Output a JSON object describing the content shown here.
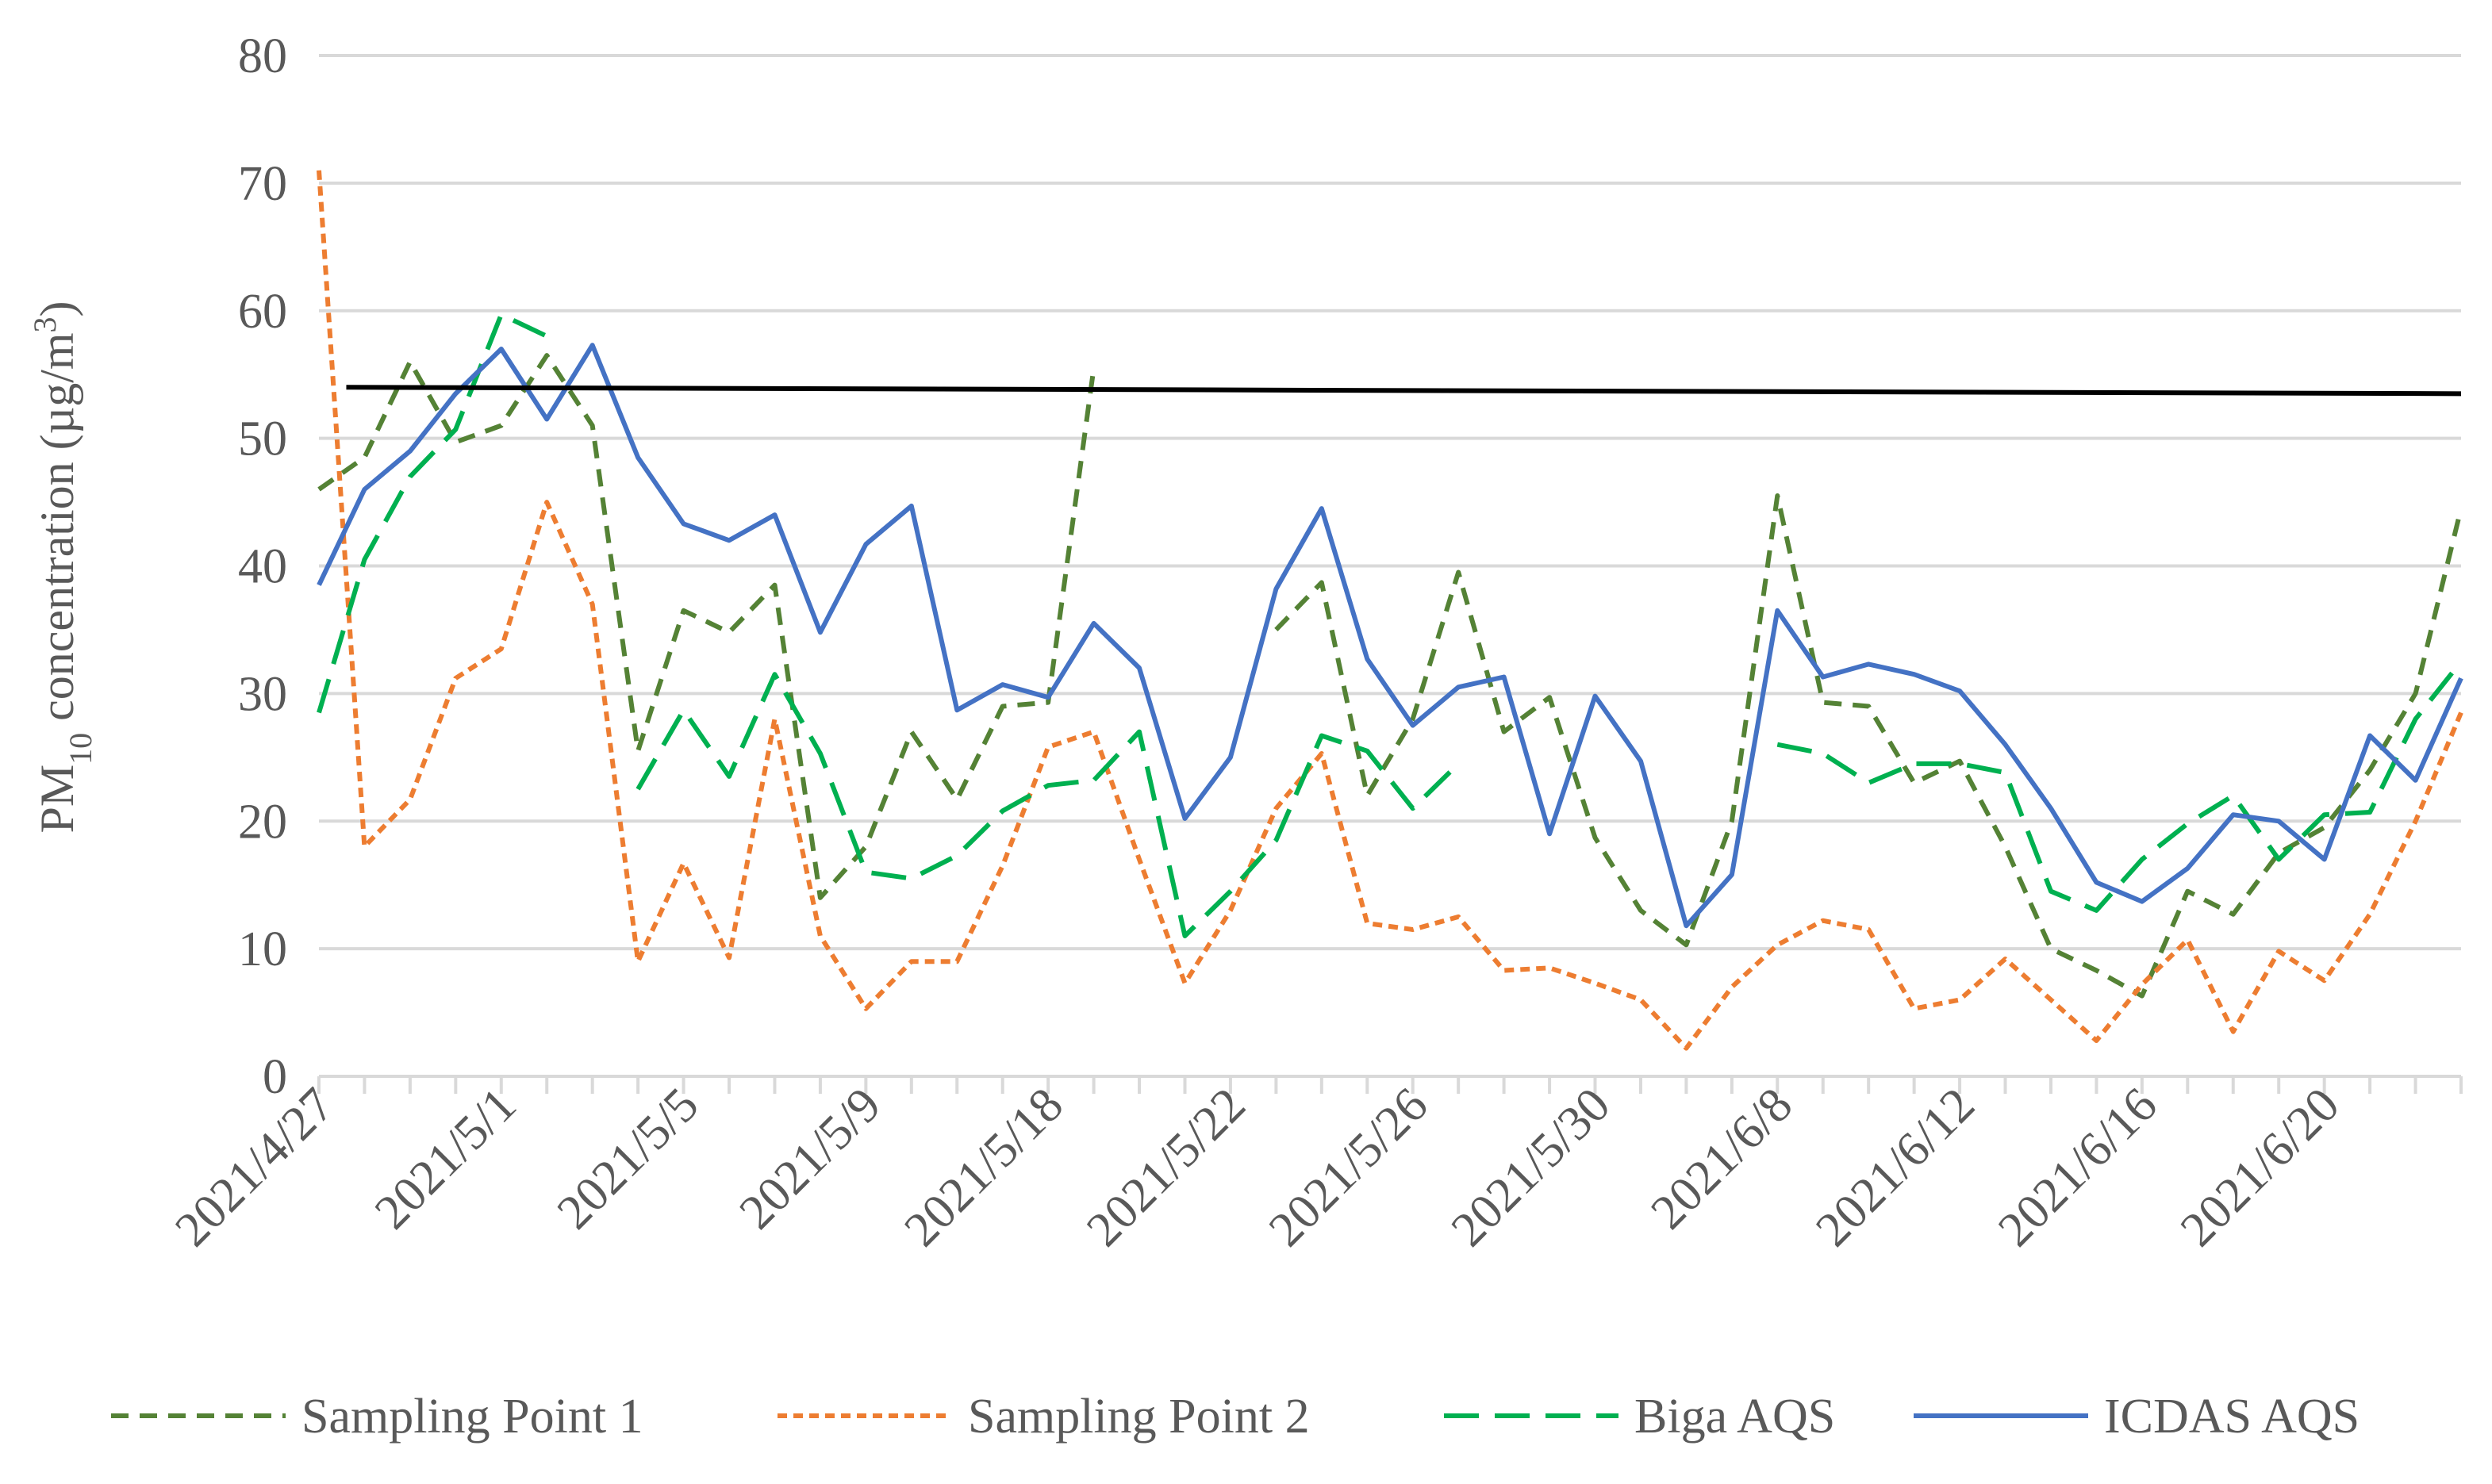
{
  "chart_data": {
    "type": "line",
    "y_label": [
      "PM",
      "10",
      " concentration (µg/m",
      "3",
      ")"
    ],
    "categories": [
      "2021/4/27",
      null,
      null,
      null,
      "2021/5/1",
      null,
      null,
      null,
      "2021/5/5",
      null,
      null,
      null,
      "2021/5/9",
      null,
      null,
      null,
      "2021/5/18",
      null,
      null,
      null,
      "2021/5/22",
      null,
      null,
      null,
      "2021/5/26",
      null,
      null,
      null,
      "2021/5/30",
      null,
      null,
      null,
      "2021/6/8",
      null,
      null,
      null,
      "2021/6/12",
      null,
      null,
      null,
      "2021/6/16",
      null,
      null,
      null,
      "2021/6/20",
      null,
      null,
      null
    ],
    "ylim": [
      0,
      80
    ],
    "yticks": [
      0,
      10,
      20,
      30,
      40,
      50,
      60,
      70,
      80
    ],
    "grid": true,
    "legend": "bottom",
    "series": [
      {
        "name": "Sampling Point 1",
        "color": "#548235",
        "dash": "short",
        "values": [
          46,
          48.5,
          56,
          49.7,
          51,
          56.5,
          51,
          25.5,
          36.5,
          34.8,
          38.5,
          14,
          18,
          27,
          21.7,
          29,
          29.3,
          55.5,
          null,
          null,
          null,
          35,
          38.7,
          22,
          28,
          39.5,
          27,
          29.7,
          18.7,
          13,
          10.3,
          20,
          45.5,
          29.3,
          29,
          23,
          24.7,
          18,
          10,
          8.3,
          6.3,
          14.5,
          12.7,
          17.5,
          19.5,
          24,
          30,
          44.5
        ]
      },
      {
        "name": "Sampling Point 2",
        "color": "#ed7d31",
        "dash": "dot",
        "values": [
          71,
          18,
          21.7,
          31.2,
          33.5,
          45,
          37,
          9,
          16.7,
          9.3,
          28,
          11,
          5.3,
          9,
          9,
          16.5,
          25.8,
          27,
          17,
          7.3,
          13,
          21,
          25.3,
          12,
          11.5,
          12.5,
          8.3,
          8.5,
          7.3,
          6,
          2.2,
          7,
          10.3,
          12.2,
          11.5,
          5.3,
          6,
          9.2,
          6,
          2.8,
          7.2,
          10.7,
          3.5,
          9.8,
          7.5,
          12.7,
          20,
          28.5
        ]
      },
      {
        "name": "Biga AQS",
        "color": "#00b050",
        "dash": "long",
        "values": [
          28.5,
          40.5,
          47,
          50.7,
          59.7,
          58,
          null,
          22.5,
          28.7,
          23.5,
          31.5,
          25.3,
          16,
          15.5,
          17.3,
          20.8,
          22.8,
          23.2,
          27,
          11,
          14.5,
          18.5,
          26.7,
          25.5,
          21,
          24.5,
          null,
          null,
          null,
          null,
          null,
          null,
          26,
          25.3,
          23,
          24.5,
          24.5,
          23.8,
          14.5,
          13,
          17,
          19.8,
          22,
          17,
          20.5,
          20.7,
          28,
          32.5
        ]
      },
      {
        "name": "ICDAS AQS",
        "color": "#4472c4",
        "dash": "solid",
        "values": [
          38.5,
          46,
          49,
          53.5,
          57,
          51.5,
          57.3,
          48.5,
          43.3,
          42,
          44,
          34.8,
          41.7,
          44.7,
          28.7,
          30.7,
          29.7,
          35.5,
          32,
          20.2,
          25,
          38.2,
          44.5,
          32.7,
          27.5,
          30.5,
          31.3,
          19,
          29.8,
          24.7,
          11.8,
          15.8,
          36.5,
          31.3,
          32.3,
          31.5,
          30.2,
          26,
          21,
          15.2,
          13.7,
          16.3,
          20.5,
          20,
          17,
          26.7,
          23.2,
          31.2
        ]
      }
    ],
    "reference_line": {
      "color": "#000000",
      "values": [
        54,
        53.5
      ]
    }
  }
}
